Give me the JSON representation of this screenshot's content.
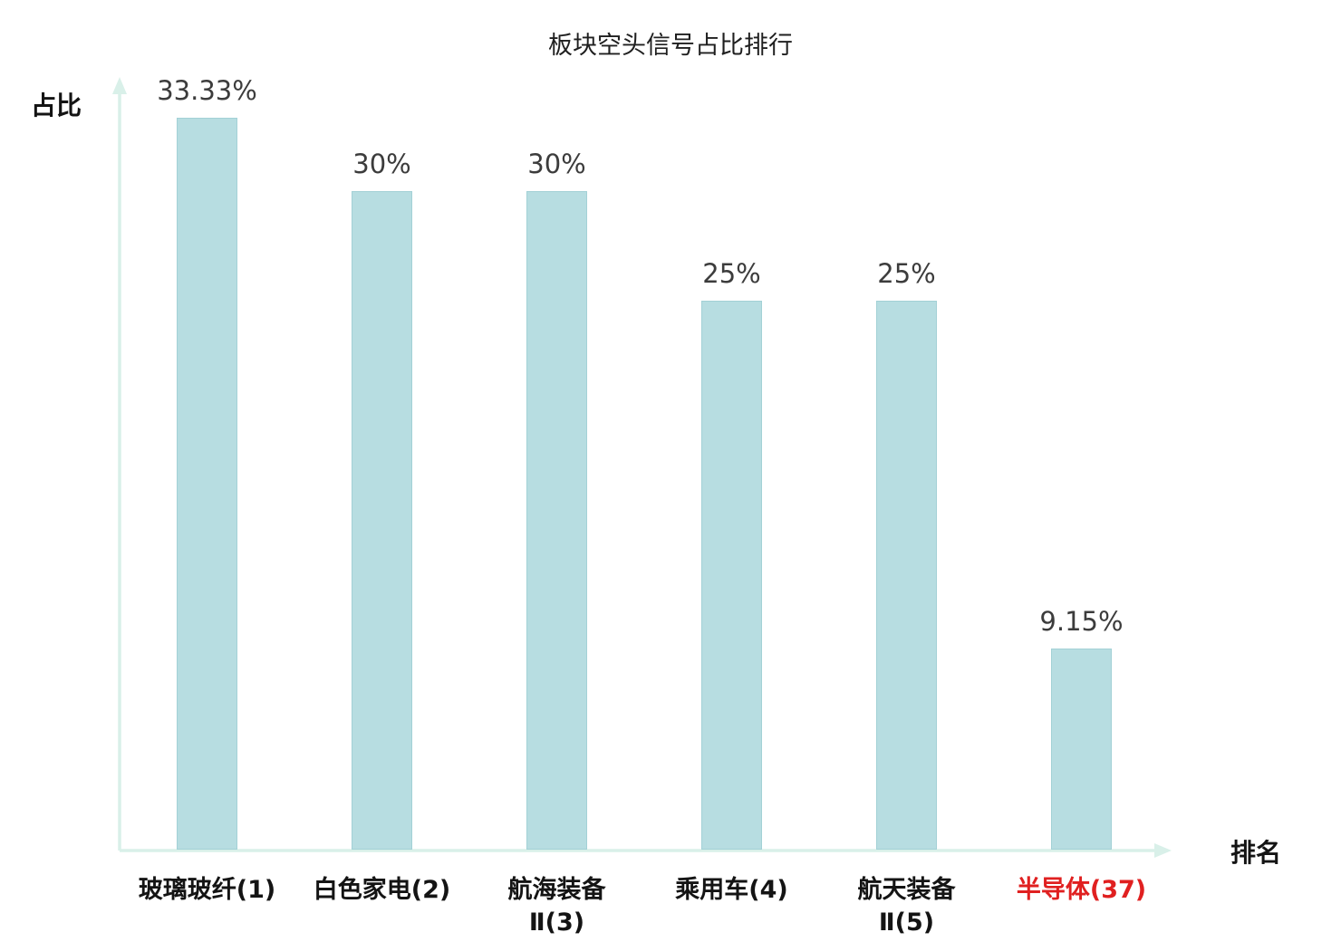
{
  "chart_data": {
    "type": "bar",
    "title": "板块空头信号占比排行",
    "xlabel": "排名",
    "ylabel": "占比",
    "categories": [
      "玻璃玻纤(1)",
      "白色家电(2)",
      "航海装备Ⅱ(3)",
      "乘用车(4)",
      "航天装备Ⅱ(5)",
      "半导体(37)"
    ],
    "category_lines": [
      [
        "玻璃玻纤(1)"
      ],
      [
        "白色家电(2)"
      ],
      [
        "航海装备",
        "Ⅱ(3)"
      ],
      [
        "乘用车(4)"
      ],
      [
        "航天装备",
        "Ⅱ(5)"
      ],
      [
        "半导体(37)"
      ]
    ],
    "values": [
      33.33,
      30,
      30,
      25,
      25,
      9.15
    ],
    "value_labels": [
      "33.33%",
      "30%",
      "30%",
      "25%",
      "25%",
      "9.15%"
    ],
    "highlight_index": 5,
    "ylim": [
      0,
      34
    ],
    "grid": false,
    "legend": "none",
    "colors": {
      "bar": "#b7dde1",
      "bar_border": "#a3d1d6",
      "axis": "#d9f0e9",
      "value_text": "#3c3c3c",
      "category_text": "#141414",
      "highlight_text": "#e02020"
    }
  }
}
